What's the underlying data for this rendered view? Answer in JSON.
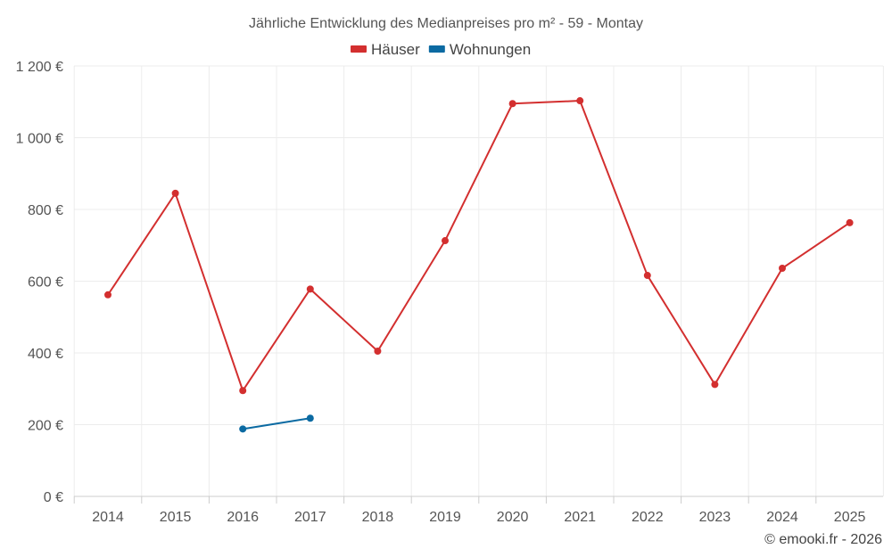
{
  "chart_data": {
    "type": "line",
    "title": "Jährliche Entwicklung des Medianpreises pro m² - 59 - Montay",
    "categories": [
      "2014",
      "2015",
      "2016",
      "2017",
      "2018",
      "2019",
      "2020",
      "2021",
      "2022",
      "2023",
      "2024",
      "2025"
    ],
    "y_tick_labels": [
      "0 €",
      "200 €",
      "400 €",
      "600 €",
      "800 €",
      "1 000 €",
      "1 200 €"
    ],
    "y_ticks": [
      0,
      200,
      400,
      600,
      800,
      1000,
      1200
    ],
    "ylim": [
      0,
      1200
    ],
    "grid": true,
    "legend_position": "top-center",
    "series": [
      {
        "name": "Häuser",
        "color": "#d32f2f",
        "values": [
          562,
          845,
          295,
          578,
          405,
          713,
          1095,
          1103,
          616,
          312,
          636,
          763
        ]
      },
      {
        "name": "Wohnungen",
        "color": "#0b6aa2",
        "values": [
          null,
          null,
          188,
          218,
          null,
          null,
          null,
          null,
          null,
          null,
          null,
          null
        ]
      }
    ],
    "credit": "© emooki.fr - 2026"
  }
}
